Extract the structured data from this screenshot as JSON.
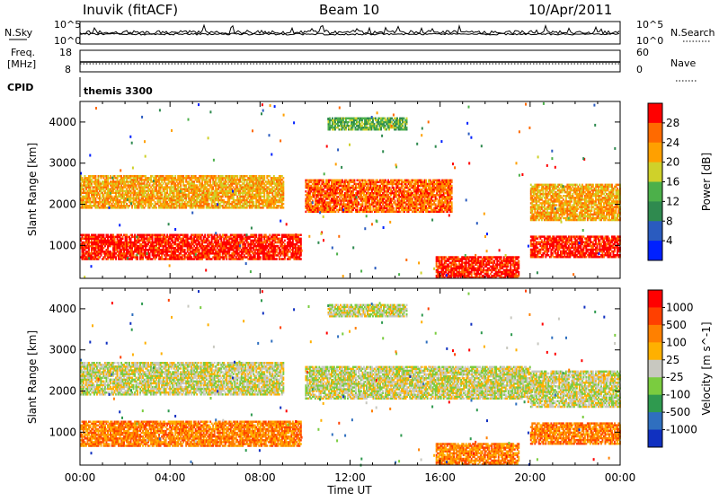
{
  "header": {
    "station": "Inuvik (fitACF)",
    "beam": "Beam 10",
    "date": "10/Apr/2011"
  },
  "strip_panels": {
    "nsky": {
      "left_label": "N.Sky",
      "right_label": "N.Search",
      "top_tick": "10^5",
      "bottom_tick": "10^0"
    },
    "freq": {
      "left_label_1": "Freq.",
      "left_label_2": "[MHz]",
      "left_ticks": [
        "18",
        "8"
      ],
      "right_label": "Nave",
      "right_ticks": [
        "60",
        "0"
      ]
    },
    "cpid": {
      "left_label": "CPID",
      "value": "themis 3300"
    }
  },
  "chart_data": [
    {
      "type": "heatmap",
      "title": "Power",
      "ylabel": "Slant Range [km]",
      "xlabel": "",
      "x_ticks": [
        "00:00",
        "04:00",
        "08:00",
        "12:00",
        "16:00",
        "20:00",
        "00:00"
      ],
      "y_ticks": [
        1000,
        2000,
        3000,
        4000
      ],
      "ylim": [
        200,
        4500
      ],
      "xlim_hours": [
        0,
        24
      ],
      "colorbar": {
        "label": "Power [dB]",
        "ticks": [
          "4",
          "8",
          "12",
          "16",
          "20",
          "24",
          "28"
        ],
        "colors": [
          "#0020ff",
          "#2a5bbf",
          "#2f8a4f",
          "#4cb04a",
          "#cfd12a",
          "#ffa000",
          "#ff6a00",
          "#ff0000"
        ]
      },
      "bands": [
        {
          "t0": 0.0,
          "t1": 9.8,
          "r0": 650,
          "r1": 1250,
          "level": 7
        },
        {
          "t0": 0.0,
          "t1": 9.0,
          "r0": 1900,
          "r1": 2700,
          "level": 5
        },
        {
          "t0": 10.0,
          "t1": 16.5,
          "r0": 1800,
          "r1": 2600,
          "level": 6
        },
        {
          "t0": 15.8,
          "t1": 19.5,
          "r0": 200,
          "r1": 700,
          "level": 7
        },
        {
          "t0": 20.0,
          "t1": 24.0,
          "r0": 700,
          "r1": 1200,
          "level": 7
        },
        {
          "t0": 20.0,
          "t1": 24.0,
          "r0": 1600,
          "r1": 2500,
          "level": 5
        },
        {
          "t0": 11.0,
          "t1": 14.5,
          "r0": 3800,
          "r1": 4100,
          "level": 3
        }
      ]
    },
    {
      "type": "heatmap",
      "title": "Velocity",
      "ylabel": "Slant Range [km]",
      "xlabel": "Time UT",
      "x_ticks": [
        "00:00",
        "04:00",
        "08:00",
        "12:00",
        "16:00",
        "20:00",
        "00:00"
      ],
      "y_ticks": [
        1000,
        2000,
        3000,
        4000
      ],
      "ylim": [
        200,
        4500
      ],
      "xlim_hours": [
        0,
        24
      ],
      "colorbar": {
        "label": "Velocity [m s^-1]",
        "ticks": [
          "1000",
          "500",
          "100",
          "25",
          "-25",
          "-100",
          "-500",
          "-1000"
        ],
        "colors": [
          "#1030c0",
          "#2f6fbf",
          "#2f9a4f",
          "#7acc3f",
          "#c8c8c0",
          "#ffb000",
          "#ff8000",
          "#ff4000",
          "#ff0000"
        ]
      },
      "bands": [
        {
          "t0": 0.0,
          "t1": 9.8,
          "r0": 650,
          "r1": 1250,
          "level": 6
        },
        {
          "t0": 0.0,
          "t1": 9.0,
          "r0": 1900,
          "r1": 2700,
          "level": 4
        },
        {
          "t0": 10.0,
          "t1": 20.0,
          "r0": 1800,
          "r1": 2600,
          "level": 4
        },
        {
          "t0": 15.8,
          "t1": 19.5,
          "r0": 200,
          "r1": 700,
          "level": 6
        },
        {
          "t0": 20.0,
          "t1": 24.0,
          "r0": 700,
          "r1": 1200,
          "level": 6
        },
        {
          "t0": 20.0,
          "t1": 24.0,
          "r0": 1600,
          "r1": 2500,
          "level": 4
        },
        {
          "t0": 11.0,
          "t1": 14.5,
          "r0": 3800,
          "r1": 4100,
          "level": 4
        }
      ]
    }
  ],
  "axis_titles": {
    "x": "Time UT"
  }
}
